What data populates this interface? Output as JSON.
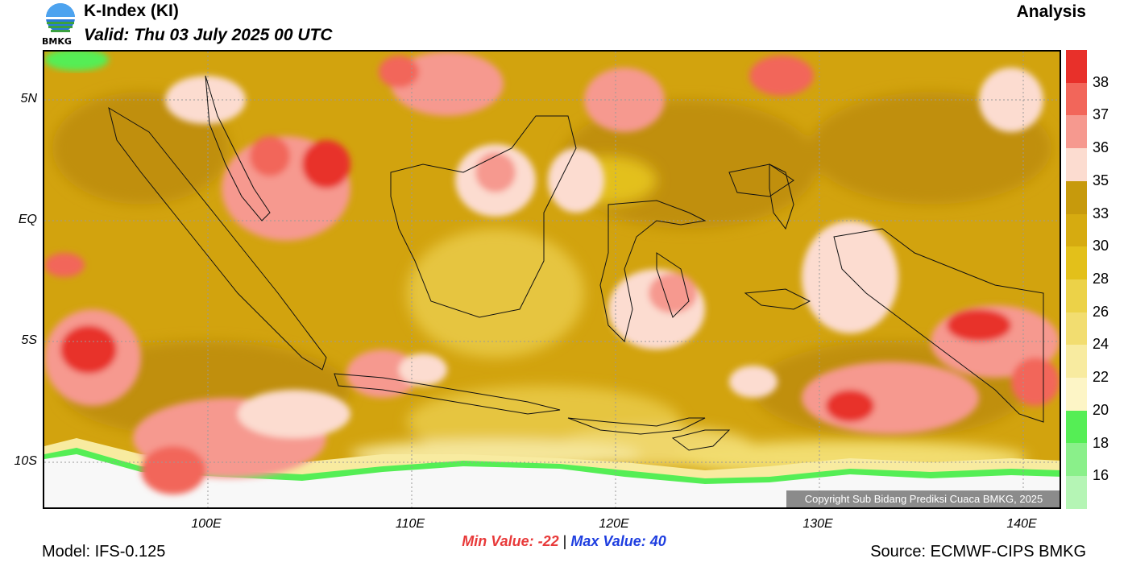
{
  "header": {
    "logo_text": "BMKG",
    "title": "K-Index (KI)",
    "valid": "Valid: Thu 03 July 2025 00 UTC",
    "analysis": "Analysis"
  },
  "map": {
    "lat_labels": [
      "5N",
      "EQ",
      "5S",
      "10S"
    ],
    "lon_labels": [
      "100E",
      "110E",
      "120E",
      "130E",
      "140E"
    ],
    "copyright": "Copyright Sub Bidang Prediksi Cuaca BMKG, 2025"
  },
  "colorbar": {
    "labels": [
      "38",
      "37",
      "36",
      "35",
      "33",
      "30",
      "28",
      "26",
      "24",
      "22",
      "20",
      "18",
      "16"
    ],
    "colors": [
      "#e8302a",
      "#f2665a",
      "#f6998f",
      "#fcdcd0",
      "#c79a0c",
      "#d6ab10",
      "#e3c01a",
      "#ecd248",
      "#f2dd70",
      "#f8eba0",
      "#fdf5c6",
      "#55ee55",
      "#8af08a",
      "#b5f5b5"
    ]
  },
  "stats": {
    "min_label": "Min Value: -22",
    "separator": "|",
    "max_label": "Max Value:  40"
  },
  "footer": {
    "model": "Model: IFS-0.125",
    "source": "Source: ECMWF-CIPS BMKG"
  }
}
